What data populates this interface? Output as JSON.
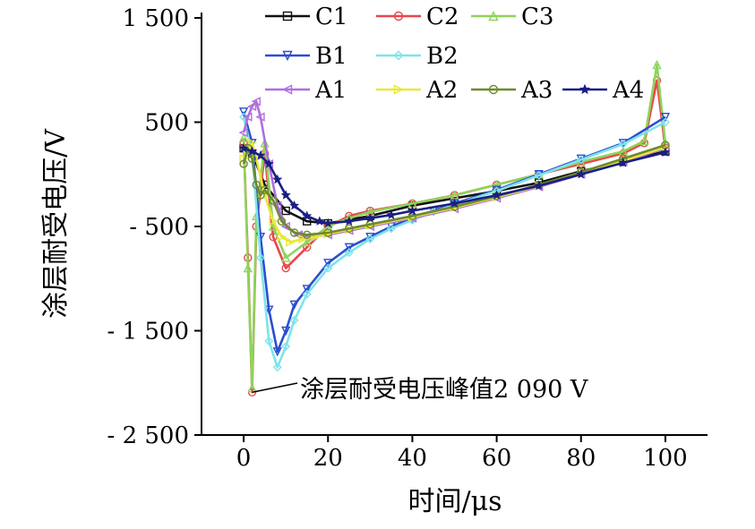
{
  "chart_data": {
    "type": "line",
    "title": "",
    "xlabel": "时间/μs",
    "ylabel": "涂层耐受电压/V",
    "xlim": [
      -10,
      110
    ],
    "ylim": [
      -2500,
      1500
    ],
    "xticks": [
      0,
      20,
      40,
      60,
      80,
      100
    ],
    "xtick_labels": [
      "0",
      "20",
      "40",
      "60",
      "80",
      "100"
    ],
    "yticks": [
      1500,
      500,
      -500,
      -1500,
      -2500
    ],
    "ytick_labels": [
      "1 500",
      "500",
      "- 500",
      "- 1 500",
      "- 2 500"
    ],
    "grid": false,
    "legend_position": "top",
    "series": [
      {
        "name": "C1",
        "color": "#111111",
        "marker": "square",
        "x": [
          0,
          2,
          5,
          10,
          15,
          20,
          30,
          40,
          50,
          60,
          70,
          80,
          90,
          100
        ],
        "y": [
          250,
          200,
          -100,
          -350,
          -450,
          -470,
          -400,
          -300,
          -230,
          -160,
          -80,
          30,
          120,
          220
        ]
      },
      {
        "name": "C2",
        "color": "#e8474a",
        "marker": "circle",
        "x": [
          0,
          1,
          2,
          3,
          5,
          7,
          10,
          15,
          20,
          25,
          30,
          40,
          50,
          60,
          70,
          80,
          90,
          95,
          98,
          100
        ],
        "y": [
          300,
          -800,
          -2090,
          -500,
          200,
          -600,
          -900,
          -700,
          -500,
          -400,
          -350,
          -280,
          -200,
          -100,
          0,
          100,
          200,
          300,
          900,
          250
        ]
      },
      {
        "name": "C3",
        "color": "#8fd35b",
        "marker": "triangle",
        "x": [
          0,
          1,
          2,
          3,
          5,
          7,
          10,
          15,
          20,
          25,
          30,
          40,
          50,
          60,
          70,
          80,
          90,
          95,
          98,
          100
        ],
        "y": [
          350,
          -900,
          -2050,
          -400,
          300,
          -500,
          -800,
          -650,
          -500,
          -420,
          -360,
          -280,
          -200,
          -100,
          0,
          120,
          220,
          320,
          1050,
          300
        ]
      },
      {
        "name": "B1",
        "color": "#2a4ed0",
        "marker": "triangle-down",
        "x": [
          0,
          2,
          4,
          6,
          8,
          10,
          12,
          15,
          20,
          25,
          30,
          35,
          40,
          45,
          50,
          60,
          70,
          80,
          90,
          100
        ],
        "y": [
          600,
          300,
          -600,
          -1300,
          -1700,
          -1500,
          -1250,
          -1100,
          -850,
          -700,
          -600,
          -500,
          -420,
          -350,
          -280,
          -150,
          0,
          150,
          300,
          550
        ]
      },
      {
        "name": "B2",
        "color": "#7fe3ea",
        "marker": "diamond",
        "x": [
          0,
          2,
          4,
          6,
          8,
          10,
          12,
          15,
          20,
          25,
          30,
          35,
          40,
          45,
          50,
          60,
          70,
          80,
          90,
          100
        ],
        "y": [
          550,
          200,
          -800,
          -1600,
          -1850,
          -1650,
          -1400,
          -1150,
          -900,
          -750,
          -620,
          -520,
          -440,
          -360,
          -290,
          -160,
          -10,
          140,
          290,
          500
        ]
      },
      {
        "name": "A1",
        "color": "#b06de0",
        "marker": "triangle-left",
        "x": [
          0,
          1,
          2,
          3,
          4,
          6,
          8,
          10,
          13,
          16,
          20,
          25,
          30,
          40,
          50,
          60,
          70,
          80,
          90,
          100
        ],
        "y": [
          400,
          550,
          650,
          700,
          550,
          100,
          -300,
          -500,
          -580,
          -600,
          -580,
          -540,
          -500,
          -420,
          -330,
          -230,
          -120,
          0,
          120,
          250
        ]
      },
      {
        "name": "A2",
        "color": "#e8e83a",
        "marker": "triangle-right",
        "x": [
          0,
          1,
          2,
          3,
          5,
          7,
          9,
          11,
          14,
          17,
          20,
          25,
          30,
          40,
          50,
          60,
          70,
          80,
          90,
          100
        ],
        "y": [
          150,
          250,
          300,
          150,
          -200,
          -450,
          -600,
          -650,
          -620,
          -600,
          -570,
          -530,
          -490,
          -410,
          -320,
          -220,
          -110,
          10,
          130,
          260
        ]
      },
      {
        "name": "A3",
        "color": "#6e8a2e",
        "marker": "circle",
        "x": [
          0,
          1,
          2,
          3,
          4,
          5,
          7,
          9,
          12,
          15,
          20,
          25,
          30,
          40,
          50,
          60,
          70,
          80,
          90,
          100
        ],
        "y": [
          100,
          250,
          150,
          -100,
          -200,
          -150,
          -250,
          -450,
          -560,
          -580,
          -560,
          -520,
          -480,
          -400,
          -310,
          -210,
          -100,
          20,
          150,
          280
        ]
      },
      {
        "name": "A4",
        "color": "#1a1f86",
        "marker": "star",
        "x": [
          0,
          2,
          4,
          6,
          8,
          10,
          12,
          15,
          18,
          20,
          25,
          30,
          35,
          40,
          50,
          60,
          70,
          80,
          90,
          100
        ],
        "y": [
          250,
          220,
          180,
          100,
          -50,
          -200,
          -300,
          -400,
          -450,
          -470,
          -450,
          -420,
          -390,
          -350,
          -280,
          -200,
          -110,
          0,
          110,
          210
        ]
      }
    ],
    "annotation": {
      "text": "涂层耐受电压峰值2 090 V",
      "x": 2,
      "y": -2090
    }
  }
}
